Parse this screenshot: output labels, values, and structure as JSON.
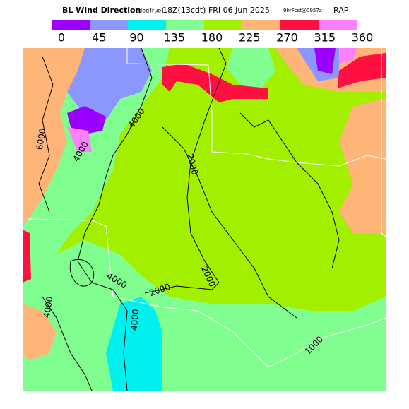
{
  "header": {
    "title": "BL Wind Direction",
    "units": "[degTrue]",
    "valid_time": "18Z(13cdt) FRI 06 Jun 2025",
    "forecast": "9hrFcst@0957z",
    "model": "RAP"
  },
  "legend": {
    "colors": [
      "#9b00ff",
      "#8c96ff",
      "#00f0f0",
      "#80ff90",
      "#a2f000",
      "#ffb478",
      "#ff1040",
      "#ff80ff"
    ],
    "ticks": [
      0,
      45,
      90,
      135,
      180,
      225,
      270,
      315,
      360
    ]
  },
  "contour_labels": [
    "6000",
    "4000",
    "4000",
    "2000",
    "2000",
    "4000",
    "2000",
    "4000",
    "4000",
    "1000"
  ]
}
